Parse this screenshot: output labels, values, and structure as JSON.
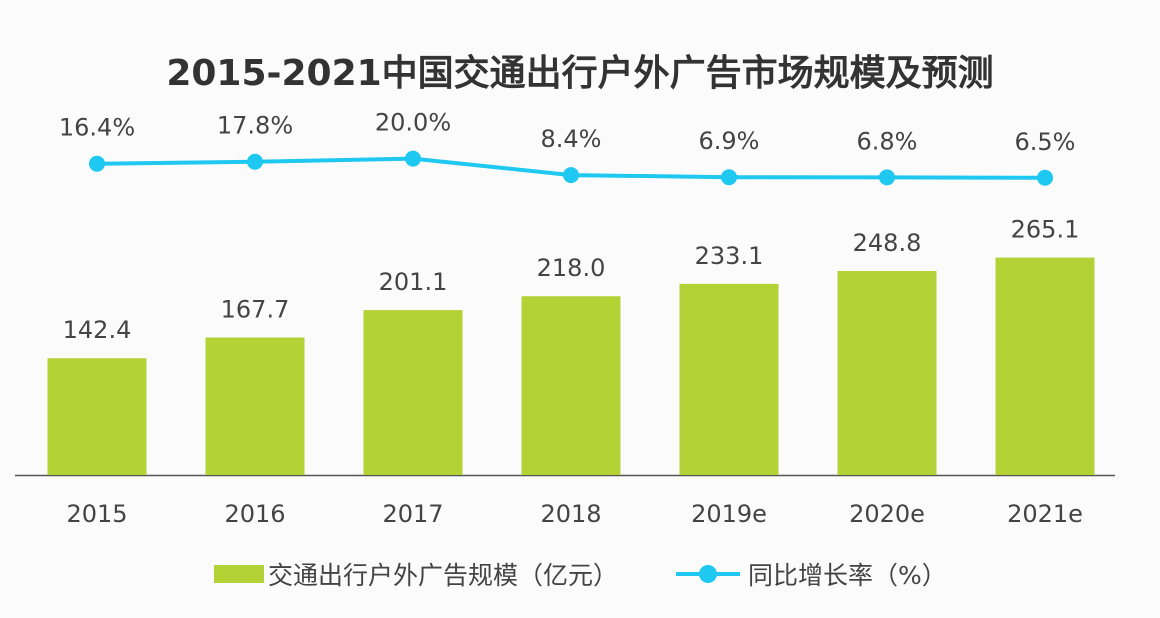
{
  "chart_data": {
    "type": "bar+line",
    "title": "2015-2021中国交通出行户外广告市场规模及预测",
    "categories": [
      "2015",
      "2016",
      "2017",
      "2018",
      "2019e",
      "2020e",
      "2021e"
    ],
    "series": [
      {
        "name": "交通出行户外广告规模（亿元）",
        "type": "bar",
        "color": "#b3d235",
        "values": [
          142.4,
          167.7,
          201.1,
          218.0,
          233.1,
          248.8,
          265.1
        ],
        "labels": [
          "142.4",
          "167.7",
          "201.1",
          "218.0",
          "233.1",
          "248.8",
          "265.1"
        ]
      },
      {
        "name": "同比增长率（%）",
        "type": "line",
        "color": "#1ec8f0",
        "values": [
          16.4,
          17.8,
          20.0,
          8.4,
          6.9,
          6.8,
          6.5
        ],
        "labels": [
          "16.4%",
          "17.8%",
          "20.0%",
          "8.4%",
          "6.9%",
          "6.8%",
          "6.5%"
        ]
      }
    ],
    "xlabel": "",
    "ylabel": "",
    "grid": false,
    "legend": "bottom"
  }
}
